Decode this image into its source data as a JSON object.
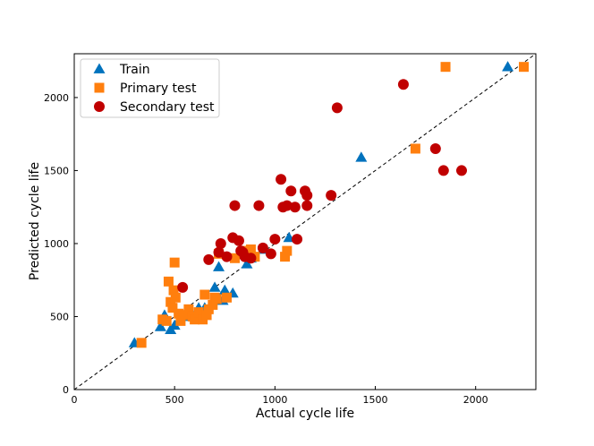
{
  "chart_data": {
    "type": "scatter",
    "title": "",
    "xlabel": "Actual cycle life",
    "ylabel": "Predicted cycle life",
    "xlim": [
      0,
      2300
    ],
    "ylim": [
      0,
      2300
    ],
    "xticks": [
      0,
      500,
      1000,
      1500,
      2000
    ],
    "yticks": [
      0,
      500,
      1000,
      1500,
      2000
    ],
    "legend_position": "top-left",
    "reference_line": {
      "style": "dashed",
      "color": "#000000",
      "from": [
        0,
        0
      ],
      "to": [
        2300,
        2300
      ]
    },
    "series": [
      {
        "name": "Train",
        "marker": "triangle",
        "color": "#0072BD",
        "points": [
          [
            300,
            320
          ],
          [
            430,
            430
          ],
          [
            450,
            510
          ],
          [
            480,
            410
          ],
          [
            500,
            440
          ],
          [
            520,
            470
          ],
          [
            560,
            500
          ],
          [
            620,
            560
          ],
          [
            650,
            560
          ],
          [
            700,
            700
          ],
          [
            720,
            840
          ],
          [
            740,
            610
          ],
          [
            750,
            680
          ],
          [
            790,
            660
          ],
          [
            860,
            860
          ],
          [
            880,
            900
          ],
          [
            940,
            960
          ],
          [
            1070,
            1040
          ],
          [
            1430,
            1590
          ],
          [
            2160,
            2210
          ]
        ]
      },
      {
        "name": "Primary test",
        "marker": "square",
        "color": "#FF7F0E",
        "points": [
          [
            335,
            320
          ],
          [
            440,
            480
          ],
          [
            460,
            470
          ],
          [
            470,
            740
          ],
          [
            480,
            600
          ],
          [
            490,
            560
          ],
          [
            495,
            680
          ],
          [
            500,
            870
          ],
          [
            505,
            630
          ],
          [
            520,
            520
          ],
          [
            530,
            470
          ],
          [
            550,
            510
          ],
          [
            570,
            550
          ],
          [
            590,
            500
          ],
          [
            600,
            480
          ],
          [
            620,
            530
          ],
          [
            640,
            480
          ],
          [
            650,
            650
          ],
          [
            660,
            510
          ],
          [
            670,
            550
          ],
          [
            690,
            580
          ],
          [
            700,
            630
          ],
          [
            710,
            620
          ],
          [
            720,
            930
          ],
          [
            760,
            630
          ],
          [
            800,
            900
          ],
          [
            840,
            930
          ],
          [
            860,
            950
          ],
          [
            880,
            960
          ],
          [
            900,
            910
          ],
          [
            1050,
            910
          ],
          [
            1060,
            950
          ],
          [
            1700,
            1650
          ],
          [
            1850,
            2210
          ],
          [
            2240,
            2210
          ]
        ]
      },
      {
        "name": "Secondary test",
        "marker": "circle",
        "color": "#C00000",
        "points": [
          [
            540,
            700
          ],
          [
            670,
            890
          ],
          [
            720,
            940
          ],
          [
            730,
            1000
          ],
          [
            760,
            910
          ],
          [
            790,
            1040
          ],
          [
            800,
            1260
          ],
          [
            820,
            1020
          ],
          [
            830,
            950
          ],
          [
            840,
            940
          ],
          [
            850,
            910
          ],
          [
            880,
            900
          ],
          [
            920,
            1260
          ],
          [
            940,
            970
          ],
          [
            980,
            930
          ],
          [
            1000,
            1030
          ],
          [
            1030,
            1440
          ],
          [
            1040,
            1250
          ],
          [
            1060,
            1260
          ],
          [
            1080,
            1360
          ],
          [
            1100,
            1250
          ],
          [
            1110,
            1030
          ],
          [
            1150,
            1360
          ],
          [
            1160,
            1260
          ],
          [
            1160,
            1330
          ],
          [
            1280,
            1330
          ],
          [
            1310,
            1930
          ],
          [
            1640,
            2090
          ],
          [
            1800,
            1650
          ],
          [
            1840,
            1500
          ],
          [
            1930,
            1500
          ]
        ]
      }
    ]
  }
}
